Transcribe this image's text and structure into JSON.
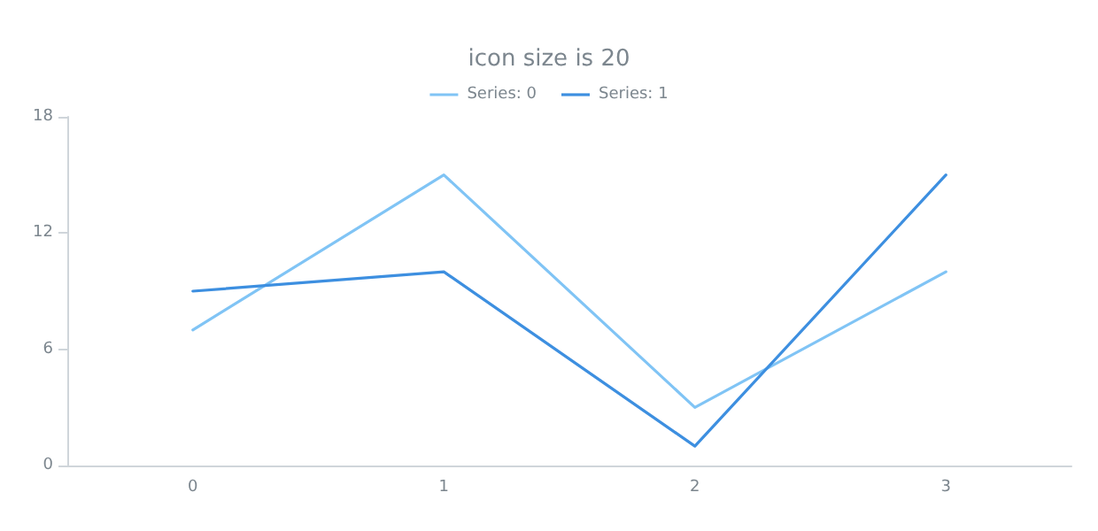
{
  "chart_data": {
    "type": "line",
    "title": "icon size is 20",
    "categories": [
      "0",
      "1",
      "2",
      "3"
    ],
    "series": [
      {
        "name": "Series: 0",
        "color": "#80c4f5",
        "values": [
          7,
          15,
          3,
          10
        ]
      },
      {
        "name": "Series: 1",
        "color": "#3d8fe0",
        "values": [
          9,
          10,
          1,
          15
        ]
      }
    ],
    "ylim": [
      0,
      18
    ],
    "yticks": [
      0,
      6,
      12,
      18
    ],
    "grid": false,
    "legend": "top",
    "marker": "none",
    "line_style": "solid"
  }
}
